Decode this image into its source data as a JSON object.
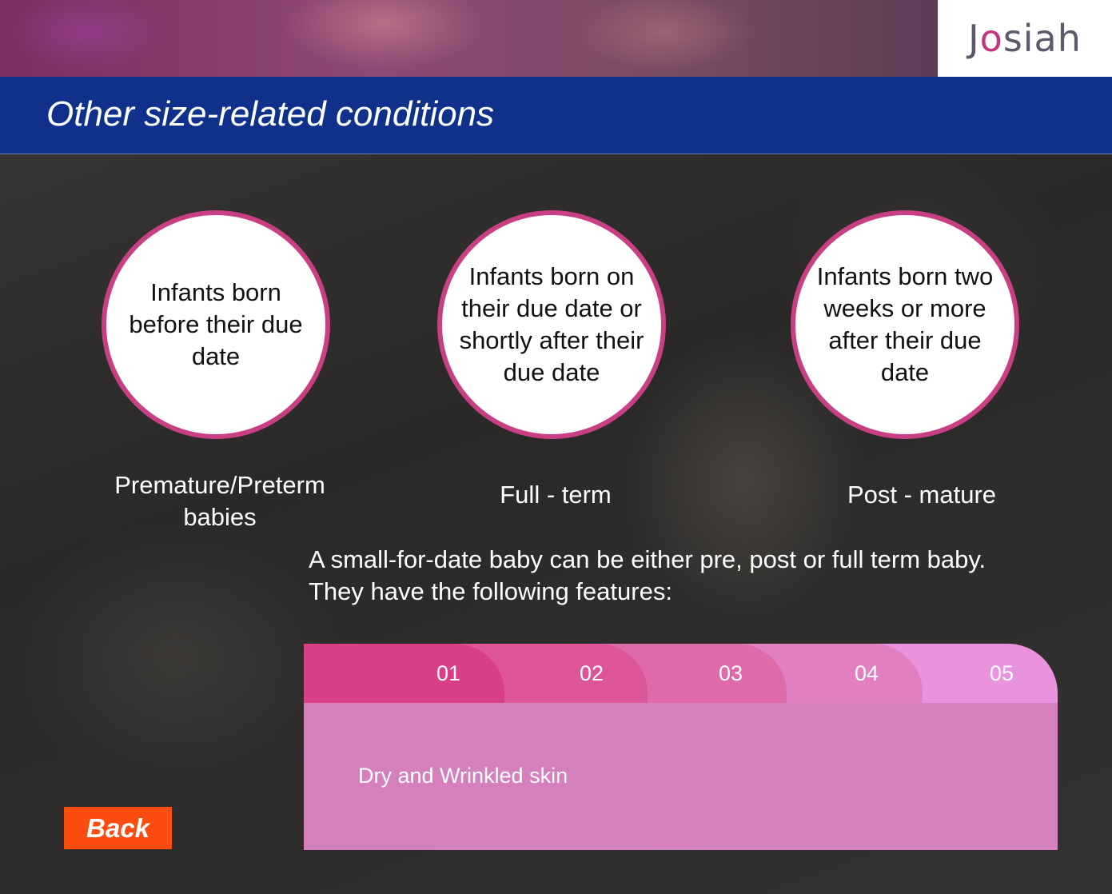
{
  "header": {
    "logo_text_pre": "J",
    "logo_text_o": "o",
    "logo_text_post": "siah",
    "title": "Other size-related conditions"
  },
  "circles": [
    {
      "text": "Infants born before their due date",
      "label": "Premature/Preterm babies"
    },
    {
      "text": "Infants born on their due date or shortly after their due date",
      "label": "Full - term"
    },
    {
      "text": "Infants born two weeks or more after their due date",
      "label": "Post - mature"
    }
  ],
  "description": {
    "line1": "A small-for-date baby can be either pre, post or full term baby.",
    "line2": "They have the following features:"
  },
  "tabs": {
    "items": [
      {
        "label": "01",
        "color": "#d93f85"
      },
      {
        "label": "02",
        "color": "#db5597"
      },
      {
        "label": "03",
        "color": "#de6aa9"
      },
      {
        "label": "04",
        "color": "#e27fc0"
      },
      {
        "label": "05",
        "color": "#e992dd"
      }
    ],
    "active_content": "Dry and Wrinkled skin",
    "panel_color": "#d580bd"
  },
  "back_button": {
    "label": "Back",
    "color": "#fb4d0f"
  }
}
